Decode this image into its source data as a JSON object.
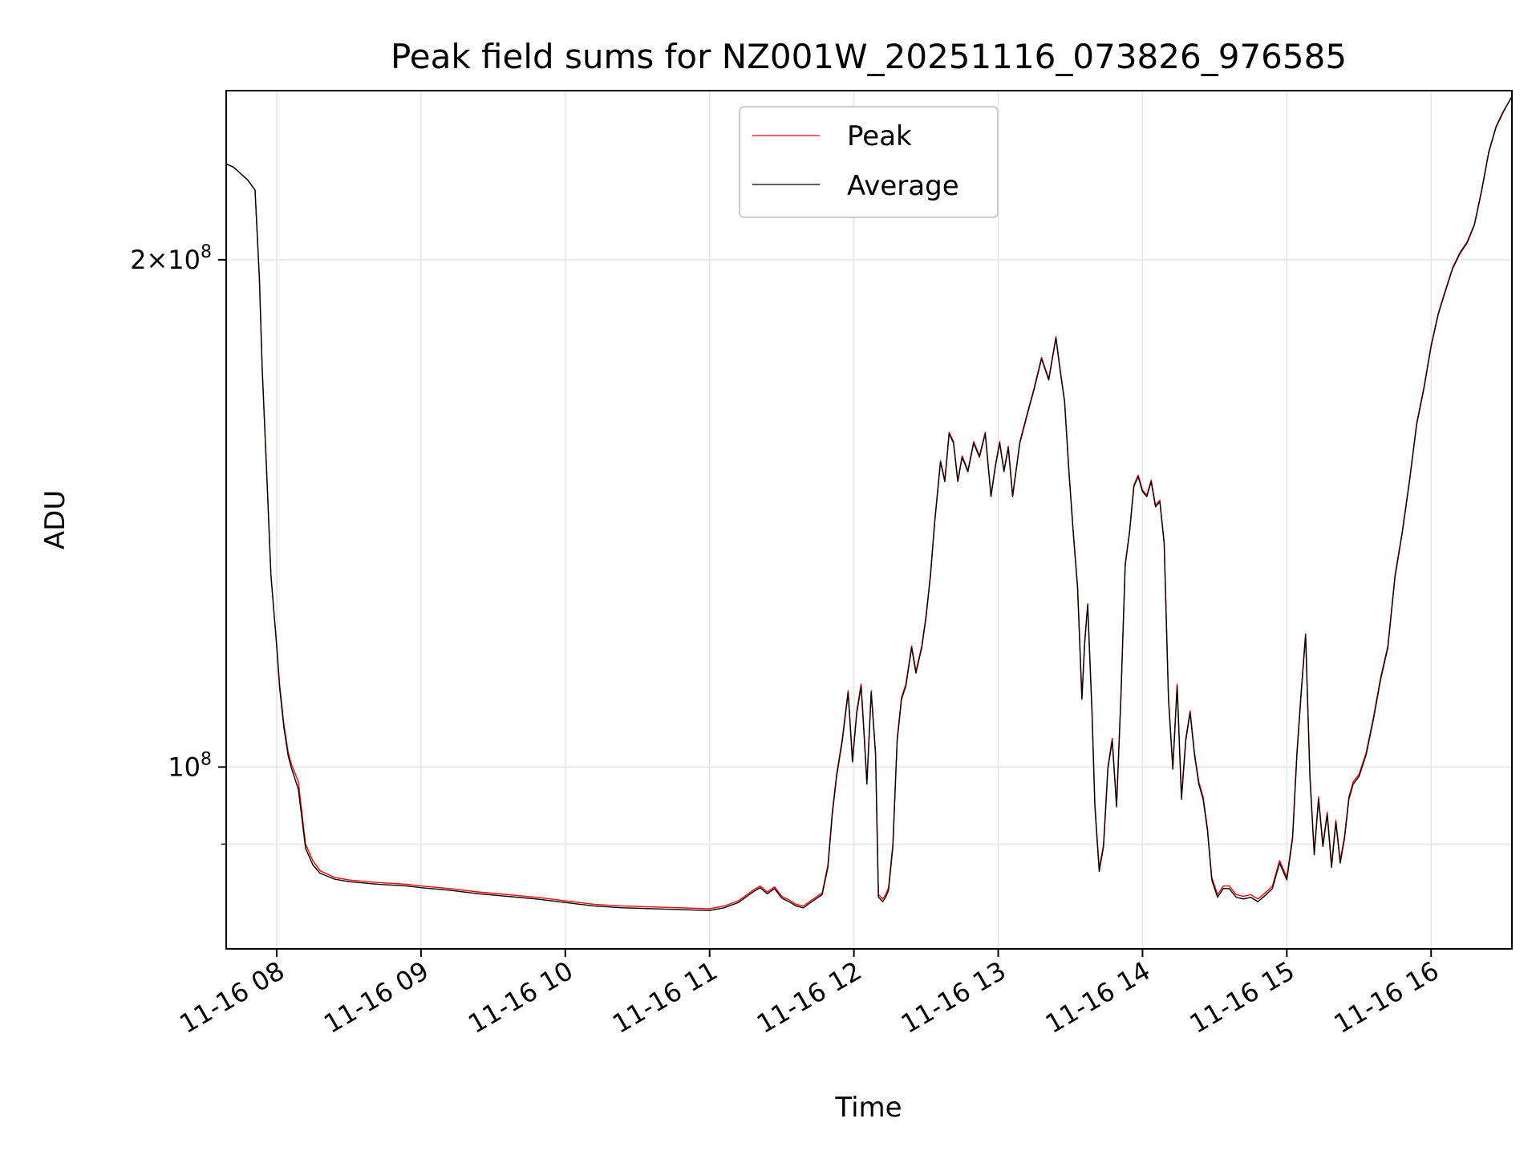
{
  "chart_data": {
    "type": "line",
    "title": "Peak field sums for NZ001W_20251116_073826_976585",
    "xlabel": "Time",
    "ylabel": "ADU",
    "yscale": "log",
    "xlim": [
      7.65,
      16.56
    ],
    "ylim": [
      78000000,
      252000000
    ],
    "grid": true,
    "legend_position": "top-center",
    "x_ticks": [
      {
        "value": 8,
        "label": "11-16 08"
      },
      {
        "value": 9,
        "label": "11-16 09"
      },
      {
        "value": 10,
        "label": "11-16 10"
      },
      {
        "value": 11,
        "label": "11-16 11"
      },
      {
        "value": 12,
        "label": "11-16 12"
      },
      {
        "value": 13,
        "label": "11-16 13"
      },
      {
        "value": 14,
        "label": "11-16 14"
      },
      {
        "value": 15,
        "label": "11-16 15"
      },
      {
        "value": 16,
        "label": "11-16 16"
      }
    ],
    "y_ticks_major": [
      {
        "value": 100000000,
        "base": "10",
        "exp": "8",
        "coef": ""
      },
      {
        "value": 200000000,
        "base": "10",
        "exp": "8",
        "coef": "2"
      }
    ],
    "y_ticks_minor": [
      90000000
    ],
    "times_label_unit": "hour of 11-16",
    "x": [
      7.65,
      7.7,
      7.75,
      7.8,
      7.85,
      7.88,
      7.9,
      7.93,
      7.96,
      8.0,
      8.02,
      8.05,
      8.08,
      8.1,
      8.15,
      8.2,
      8.25,
      8.3,
      8.4,
      8.5,
      8.7,
      8.9,
      9.0,
      9.2,
      9.4,
      9.6,
      9.8,
      10.0,
      10.2,
      10.4,
      10.6,
      10.8,
      11.0,
      11.1,
      11.2,
      11.3,
      11.35,
      11.4,
      11.45,
      11.5,
      11.55,
      11.6,
      11.65,
      11.7,
      11.78,
      11.82,
      11.85,
      11.88,
      11.92,
      11.96,
      11.99,
      12.02,
      12.05,
      12.07,
      12.09,
      12.12,
      12.15,
      12.17,
      12.2,
      12.22,
      12.24,
      12.27,
      12.3,
      12.33,
      12.36,
      12.4,
      12.43,
      12.47,
      12.5,
      12.53,
      12.56,
      12.6,
      12.63,
      12.66,
      12.69,
      12.72,
      12.75,
      12.79,
      12.83,
      12.87,
      12.91,
      12.95,
      12.98,
      13.01,
      13.04,
      13.07,
      13.1,
      13.15,
      13.2,
      13.25,
      13.3,
      13.35,
      13.4,
      13.43,
      13.46,
      13.49,
      13.52,
      13.55,
      13.58,
      13.6,
      13.62,
      13.65,
      13.67,
      13.7,
      13.73,
      13.76,
      13.79,
      13.82,
      13.85,
      13.88,
      13.91,
      13.94,
      13.97,
      14.0,
      14.03,
      14.06,
      14.09,
      14.12,
      14.15,
      14.18,
      14.21,
      14.24,
      14.27,
      14.3,
      14.33,
      14.36,
      14.39,
      14.42,
      14.45,
      14.48,
      14.52,
      14.56,
      14.6,
      14.65,
      14.7,
      14.75,
      14.8,
      14.85,
      14.9,
      14.95,
      15.0,
      15.04,
      15.07,
      15.1,
      15.13,
      15.16,
      15.19,
      15.22,
      15.25,
      15.28,
      15.31,
      15.34,
      15.37,
      15.4,
      15.43,
      15.46,
      15.5,
      15.55,
      15.6,
      15.65,
      15.7,
      15.75,
      15.8,
      15.85,
      15.9,
      15.95,
      16.0,
      16.05,
      16.1,
      16.15,
      16.2,
      16.25,
      16.3,
      16.35,
      16.4,
      16.45,
      16.5,
      16.56
    ],
    "series": [
      {
        "name": "Peak",
        "color": "#ff0000",
        "values": [
          228000000,
          227000000,
          225000000,
          223000000,
          220000000,
          195000000,
          172000000,
          150000000,
          130000000,
          118000000,
          112000000,
          106000000,
          102000000,
          100500000,
          98000000,
          90000000,
          88000000,
          86800000,
          86000000,
          85700000,
          85400000,
          85200000,
          85000000,
          84700000,
          84300000,
          84000000,
          83700000,
          83300000,
          82900000,
          82700000,
          82600000,
          82500000,
          82400000,
          82700000,
          83300000,
          84500000,
          85000000,
          84300000,
          84900000,
          83800000,
          83400000,
          82900000,
          82700000,
          83300000,
          84200000,
          87500000,
          94000000,
          99000000,
          104000000,
          111000000,
          101000000,
          108000000,
          112000000,
          105000000,
          98000000,
          111000000,
          102000000,
          84000000,
          83500000,
          84000000,
          84800000,
          90000000,
          104000000,
          110000000,
          112000000,
          118000000,
          114000000,
          118000000,
          123000000,
          130000000,
          140000000,
          152000000,
          148000000,
          158000000,
          156000000,
          148000000,
          153000000,
          150000000,
          156000000,
          153000000,
          158000000,
          145000000,
          151000000,
          156000000,
          150000000,
          155000000,
          145000000,
          156000000,
          162000000,
          168000000,
          175000000,
          170000000,
          180000000,
          172000000,
          165000000,
          150000000,
          138000000,
          128000000,
          110000000,
          119000000,
          125000000,
          108000000,
          95000000,
          87000000,
          90000000,
          100000000,
          104000000,
          95000000,
          110000000,
          132000000,
          138000000,
          147000000,
          149000000,
          146000000,
          145000000,
          148000000,
          143000000,
          144000000,
          136000000,
          110000000,
          100000000,
          112000000,
          96000000,
          104000000,
          108000000,
          102000000,
          98000000,
          96000000,
          92000000,
          86000000,
          84000000,
          85000000,
          85000000,
          84000000,
          83800000,
          84000000,
          83500000,
          84200000,
          85000000,
          88000000,
          86000000,
          91000000,
          102000000,
          111000000,
          120000000,
          99000000,
          89000000,
          96000000,
          90000000,
          94000000,
          87500000,
          93000000,
          88000000,
          91000000,
          96000000,
          98000000,
          99000000,
          102000000,
          107000000,
          113000000,
          118000000,
          130000000,
          138000000,
          148000000,
          160000000,
          168000000,
          178000000,
          186000000,
          192000000,
          198000000,
          202000000,
          205000000,
          210000000,
          220000000,
          232000000,
          240000000,
          245000000,
          250000000
        ]
      },
      {
        "name": "Average",
        "color": "#000000",
        "values": [
          228000000,
          227000000,
          225000000,
          223000000,
          220000000,
          195000000,
          172000000,
          150000000,
          130000000,
          118000000,
          111500000,
          105500000,
          101500000,
          100000000,
          97000000,
          89500000,
          87500000,
          86500000,
          85800000,
          85500000,
          85200000,
          85000000,
          84800000,
          84500000,
          84100000,
          83800000,
          83500000,
          83100000,
          82700000,
          82500000,
          82400000,
          82300000,
          82200000,
          82500000,
          83100000,
          84300000,
          84800000,
          84100000,
          84700000,
          83600000,
          83200000,
          82700000,
          82500000,
          83100000,
          84000000,
          87200000,
          93700000,
          98700000,
          103700000,
          110700000,
          100700000,
          107700000,
          111700000,
          104700000,
          97700000,
          110700000,
          101700000,
          83700000,
          83200000,
          83700000,
          84500000,
          89700000,
          103700000,
          109700000,
          111700000,
          117700000,
          113700000,
          117700000,
          122700000,
          129700000,
          139700000,
          151700000,
          147700000,
          157700000,
          155700000,
          147700000,
          152700000,
          149700000,
          155700000,
          152700000,
          157700000,
          144700000,
          150700000,
          155700000,
          149700000,
          154700000,
          144700000,
          155700000,
          161700000,
          167700000,
          174700000,
          169700000,
          179700000,
          171700000,
          164700000,
          149700000,
          137700000,
          127700000,
          109700000,
          118700000,
          124700000,
          107700000,
          94700000,
          86700000,
          89700000,
          99700000,
          103700000,
          94700000,
          109700000,
          131700000,
          137700000,
          146700000,
          148700000,
          145700000,
          144700000,
          147700000,
          142700000,
          143700000,
          135700000,
          109700000,
          99700000,
          111700000,
          95700000,
          103700000,
          107700000,
          101700000,
          97700000,
          95700000,
          91700000,
          85700000,
          83700000,
          84700000,
          84700000,
          83700000,
          83500000,
          83700000,
          83200000,
          83900000,
          84700000,
          87700000,
          85700000,
          90700000,
          101700000,
          110700000,
          119700000,
          98700000,
          88700000,
          95700000,
          89700000,
          93700000,
          87200000,
          92700000,
          87700000,
          90700000,
          95700000,
          97700000,
          98700000,
          101700000,
          106700000,
          112700000,
          117700000,
          129700000,
          137700000,
          147700000,
          159700000,
          167700000,
          177700000,
          185700000,
          191700000,
          197700000,
          201700000,
          204700000,
          209700000,
          219700000,
          231700000,
          239700000,
          244700000,
          250000000
        ]
      }
    ]
  }
}
